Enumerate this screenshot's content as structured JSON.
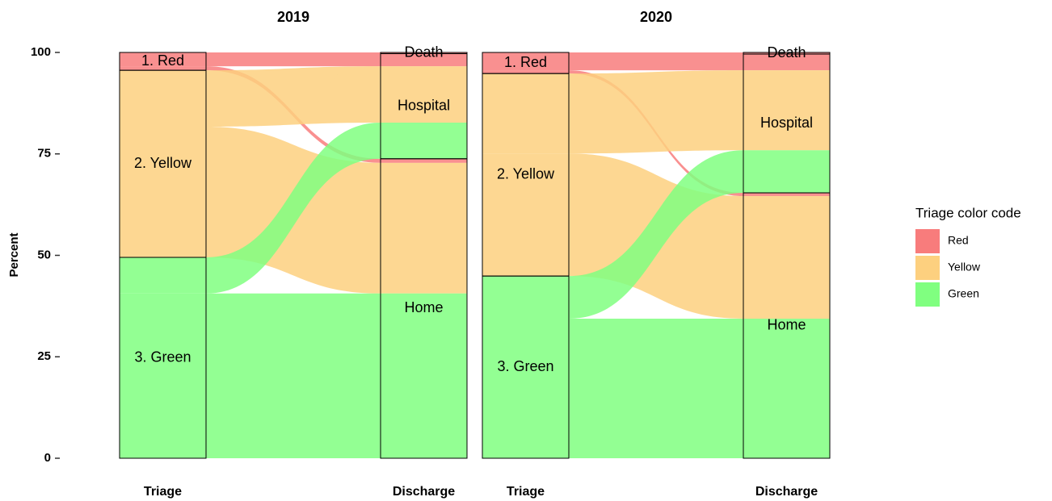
{
  "chart_data": [
    {
      "type": "alluvial",
      "title": "2019",
      "axes": [
        "Triage",
        "Discharge"
      ],
      "sources": [
        "1. Red",
        "2. Yellow",
        "3. Green"
      ],
      "targets": [
        "Death",
        "Hospital",
        "Home"
      ],
      "series": [
        {
          "color": "#f87c7c",
          "values": [
            0.3,
            3.1,
            1.0
          ]
        },
        {
          "color": "#fdd07f",
          "values": [
            0,
            13.9,
            32.2
          ]
        },
        {
          "color": "#80ff80",
          "values": [
            0,
            8.9,
            40.6
          ]
        }
      ],
      "ylabel": "Percent",
      "ylim": [
        0,
        100
      ],
      "yticks": [
        0,
        25,
        50,
        75,
        100
      ]
    },
    {
      "type": "alluvial",
      "title": "2020",
      "axes": [
        "Triage",
        "Discharge"
      ],
      "sources": [
        "1. Red",
        "2. Yellow",
        "3. Green"
      ],
      "targets": [
        "Death",
        "Hospital",
        "Home"
      ],
      "legend_title": "Triage color code",
      "series": [
        {
          "name": "Red",
          "color": "#f87c7c",
          "values": [
            0.4,
            4.0,
            0.8
          ]
        },
        {
          "name": "Yellow",
          "color": "#fdd07f",
          "values": [
            0,
            19.7,
            30.2
          ]
        },
        {
          "name": "Green",
          "color": "#80ff80",
          "values": [
            0,
            10.5,
            34.4
          ]
        }
      ]
    }
  ]
}
